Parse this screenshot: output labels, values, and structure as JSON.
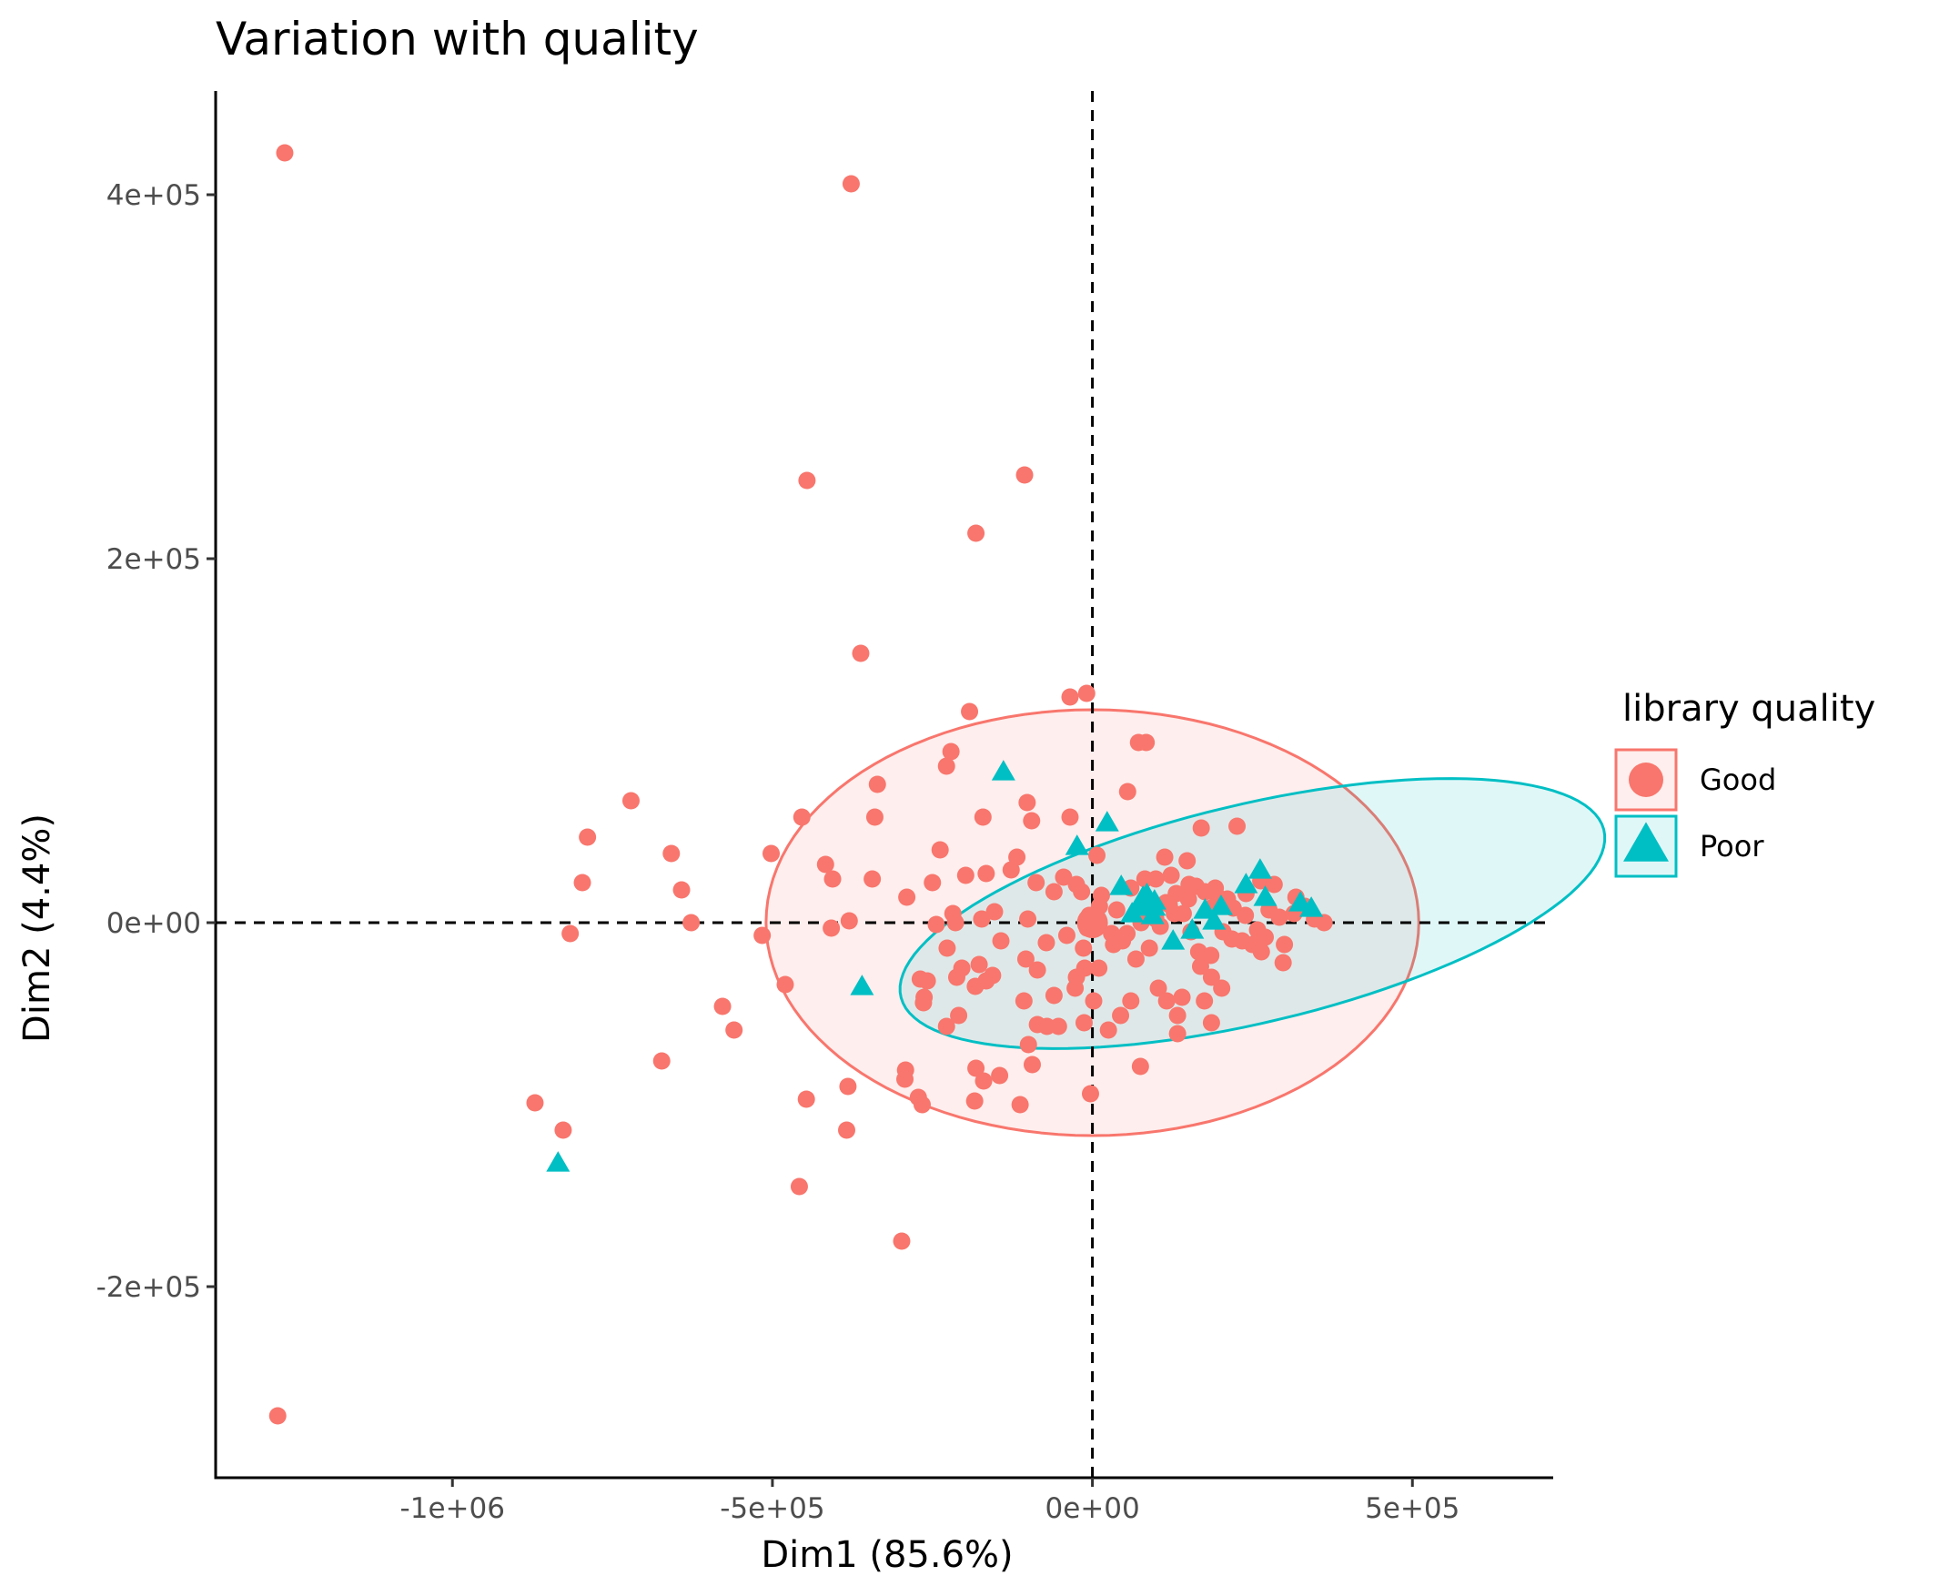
{
  "chart_data": {
    "type": "scatter",
    "title": "Variation with quality",
    "xlabel": "Dim1 (85.6%)",
    "ylabel": "Dim2 (4.4%)",
    "xlim": [
      -1370000,
      720000
    ],
    "ylim": [
      -305000,
      457000
    ],
    "x_ticks": [
      {
        "value": -1000000,
        "label": "-1e+06"
      },
      {
        "value": -500000,
        "label": "-5e+05"
      },
      {
        "value": 0,
        "label": "0e+00"
      },
      {
        "value": 500000,
        "label": "5e+05"
      }
    ],
    "y_ticks": [
      {
        "value": -200000,
        "label": "-2e+05"
      },
      {
        "value": 0,
        "label": "0e+00"
      },
      {
        "value": 200000,
        "label": "2e+05"
      },
      {
        "value": 400000,
        "label": "4e+05"
      }
    ],
    "reference_lines": {
      "x": 0,
      "y": 0,
      "style": "dashed"
    },
    "grid": false,
    "legend": {
      "title": "library quality",
      "position": "right"
    },
    "series": [
      {
        "name": "Good",
        "color": "#F8766D",
        "marker": "circle",
        "ellipse": {
          "cx": 0,
          "cy": 0,
          "rx": 510000,
          "ry": 117000,
          "angle_deg": 0
        },
        "mean": [
          0,
          0
        ],
        "points": [
          [
            -1262000,
            423000
          ],
          [
            -1273000,
            -271000
          ],
          [
            -377000,
            406000
          ],
          [
            -446000,
            243000
          ],
          [
            -106000,
            246000
          ],
          [
            -182000,
            214000
          ],
          [
            -362000,
            148000
          ],
          [
            -35000,
            124000
          ],
          [
            -9000,
            126000
          ],
          [
            -192000,
            116000
          ],
          [
            -221000,
            94000
          ],
          [
            -228000,
            86000
          ],
          [
            -336000,
            76000
          ],
          [
            -721000,
            67000
          ],
          [
            -789000,
            47000
          ],
          [
            -658000,
            38000
          ],
          [
            -797000,
            22000
          ],
          [
            -642000,
            18000
          ],
          [
            -627000,
            0
          ],
          [
            -816000,
            -6000
          ],
          [
            -102000,
            66000
          ],
          [
            -171000,
            58000
          ],
          [
            -340000,
            58000
          ],
          [
            -454000,
            58000
          ],
          [
            -502000,
            38000
          ],
          [
            -417000,
            32000
          ],
          [
            -406000,
            24000
          ],
          [
            -344000,
            24000
          ],
          [
            -238000,
            40000
          ],
          [
            -95000,
            56000
          ],
          [
            -35000,
            58000
          ],
          [
            -578000,
            -46000
          ],
          [
            -560000,
            -59000
          ],
          [
            -673000,
            -76000
          ],
          [
            -871000,
            -99000
          ],
          [
            -827000,
            -114000
          ],
          [
            -447000,
            -97000
          ],
          [
            -382000,
            -90000
          ],
          [
            -384000,
            -114000
          ],
          [
            -458000,
            -145000
          ],
          [
            -298000,
            -175000
          ],
          [
            -292000,
            -81000
          ],
          [
            -293000,
            -86000
          ],
          [
            -272000,
            -96000
          ],
          [
            -266000,
            -100000
          ],
          [
            -182000,
            -80000
          ],
          [
            -170000,
            -87000
          ],
          [
            -113000,
            -100000
          ],
          [
            -145000,
            -84000
          ],
          [
            -94000,
            -78000
          ],
          [
            -100000,
            -67000
          ],
          [
            -86000,
            -56000
          ],
          [
            -53000,
            -57000
          ],
          [
            -3000,
            -94000
          ],
          [
            -184000,
            -98000
          ],
          [
            -516000,
            -7000
          ],
          [
            -480000,
            -34000
          ],
          [
            -408000,
            -3000
          ],
          [
            -380000,
            1000
          ],
          [
            -269000,
            -31000
          ],
          [
            -290000,
            14000
          ],
          [
            -250000,
            22000
          ],
          [
            -227000,
            -14000
          ],
          [
            -214000,
            0
          ],
          [
            -198000,
            26000
          ],
          [
            -166000,
            27000
          ],
          [
            -153000,
            6000
          ],
          [
            -127000,
            29000
          ],
          [
            -118000,
            36000
          ],
          [
            -88000,
            22000
          ],
          [
            -60000,
            17000
          ],
          [
            -17000,
            17000
          ],
          [
            14000,
            15000
          ],
          [
            7000,
            37000
          ],
          [
            55000,
            72000
          ],
          [
            72000,
            99000
          ],
          [
            84000,
            99000
          ],
          [
            113000,
            36000
          ],
          [
            148000,
            34000
          ],
          [
            170000,
            52000
          ],
          [
            226000,
            53000
          ],
          [
            192000,
            19000
          ],
          [
            211000,
            13000
          ],
          [
            240000,
            16000
          ],
          [
            263000,
            23000
          ],
          [
            284000,
            21000
          ],
          [
            318000,
            14000
          ],
          [
            332000,
            9000
          ],
          [
            347000,
            2000
          ],
          [
            362000,
            0
          ],
          [
            300000,
            -12000
          ],
          [
            298000,
            -22000
          ],
          [
            264000,
            -16000
          ],
          [
            234000,
            -10000
          ],
          [
            204000,
            -5000
          ],
          [
            185000,
            -18000
          ],
          [
            169000,
            -24000
          ],
          [
            175000,
            -43000
          ],
          [
            186000,
            -55000
          ],
          [
            140000,
            -41000
          ],
          [
            103000,
            -36000
          ],
          [
            116000,
            -43000
          ],
          [
            133000,
            -51000
          ],
          [
            133000,
            -61000
          ],
          [
            75000,
            -79000
          ],
          [
            60000,
            -43000
          ],
          [
            44000,
            -51000
          ],
          [
            25000,
            -59000
          ],
          [
            2000,
            -43000
          ],
          [
            -13000,
            -55000
          ],
          [
            -27000,
            -36000
          ],
          [
            -71000,
            -57000
          ],
          [
            -107000,
            -43000
          ],
          [
            -156000,
            -29000
          ],
          [
            -204000,
            -25000
          ],
          [
            -212000,
            -30000
          ],
          [
            -258000,
            -32000
          ],
          [
            -263000,
            -41000
          ],
          [
            -264000,
            -44000
          ],
          [
            -228000,
            -57000
          ],
          [
            -209000,
            -51000
          ],
          [
            -183000,
            -35000
          ],
          [
            -166000,
            -32000
          ],
          [
            -177000,
            -23000
          ],
          [
            -143000,
            -10000
          ],
          [
            -104000,
            -20000
          ],
          [
            -86000,
            -26000
          ],
          [
            -60000,
            -40000
          ],
          [
            -25000,
            -30000
          ],
          [
            -12000,
            -25000
          ],
          [
            10000,
            -25000
          ],
          [
            33000,
            -12000
          ],
          [
            54000,
            -6000
          ],
          [
            76000,
            0
          ],
          [
            96000,
            6000
          ],
          [
            115000,
            11000
          ],
          [
            131000,
            16000
          ],
          [
            150000,
            13000
          ],
          [
            162000,
            20000
          ],
          [
            176000,
            17000
          ],
          [
            196000,
            14000
          ],
          [
            220000,
            8000
          ],
          [
            239000,
            4000
          ],
          [
            258000,
            -4000
          ],
          [
            276000,
            7000
          ],
          [
            292000,
            3000
          ],
          [
            315000,
            5000
          ],
          [
            128000,
            5000
          ],
          [
            106000,
            -2000
          ],
          [
            89000,
            -14000
          ],
          [
            68000,
            -20000
          ],
          [
            47000,
            -10000
          ],
          [
            30000,
            -6000
          ],
          [
            -14000,
            -14000
          ],
          [
            -40000,
            -7000
          ],
          [
            -72000,
            -11000
          ],
          [
            -101000,
            2000
          ],
          [
            -173000,
            2000
          ],
          [
            -218000,
            5000
          ],
          [
            -244000,
            -1000
          ],
          [
            -45000,
            25000
          ],
          [
            -25000,
            21000
          ],
          [
            11000,
            9000
          ],
          [
            38000,
            7000
          ],
          [
            60000,
            19000
          ],
          [
            82000,
            24000
          ],
          [
            99000,
            24000
          ],
          [
            123000,
            26000
          ],
          [
            142000,
            5000
          ],
          [
            154000,
            -5000
          ],
          [
            166000,
            -16000
          ],
          [
            186000,
            -30000
          ],
          [
            202000,
            -36000
          ],
          [
            218000,
            -9000
          ],
          [
            250000,
            -12000
          ],
          [
            270000,
            -8000
          ],
          [
            151000,
            21000
          ],
          [
            120000,
            10000
          ],
          [
            99000,
            2000
          ],
          [
            185000,
            8000
          ],
          [
            -1000,
            0
          ],
          [
            -5000,
            4000
          ],
          [
            6000,
            -2000
          ],
          [
            -8000,
            -3000
          ]
        ]
      },
      {
        "name": "Poor",
        "color": "#00BFC4",
        "marker": "triangle",
        "ellipse": {
          "cx": 250000,
          "cy": 5000,
          "rx": 565000,
          "ry": 62000,
          "angle_deg": 13
        },
        "mean": [
          85000,
          10000
        ],
        "points": [
          [
            -139000,
            82000
          ],
          [
            -24000,
            41000
          ],
          [
            23000,
            54000
          ],
          [
            45000,
            19000
          ],
          [
            79000,
            13000
          ],
          [
            62000,
            4000
          ],
          [
            94000,
            3000
          ],
          [
            126000,
            -11000
          ],
          [
            156000,
            -5000
          ],
          [
            190000,
            0
          ],
          [
            201000,
            8000
          ],
          [
            240000,
            20000
          ],
          [
            262000,
            28000
          ],
          [
            270000,
            13000
          ],
          [
            325000,
            10000
          ],
          [
            342000,
            7000
          ],
          [
            -360000,
            -36000
          ],
          [
            -835000,
            -133000
          ],
          [
            176000,
            6000
          ],
          [
            97000,
            11000
          ]
        ]
      }
    ]
  }
}
